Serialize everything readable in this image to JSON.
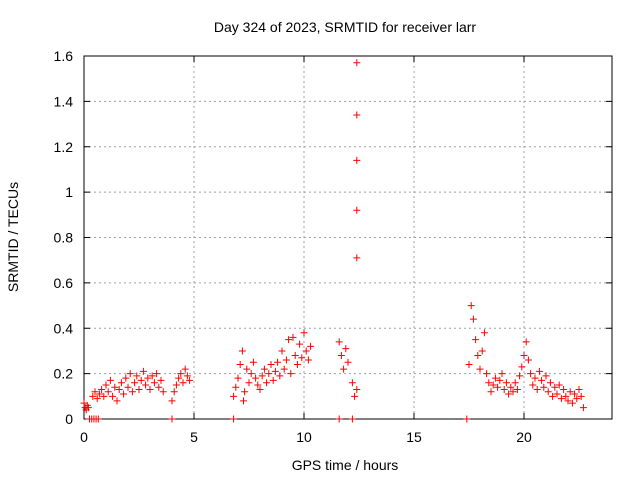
{
  "chart_data": {
    "type": "scatter",
    "title": "Day 324 of 2023, SRMTID for receiver larr",
    "xlabel": "GPS time / hours",
    "ylabel": "SRMTID / TECUs",
    "xlim": [
      0,
      24
    ],
    "ylim": [
      0,
      1.6
    ],
    "xticks": [
      0,
      5,
      10,
      15,
      20
    ],
    "yticks": [
      0,
      0.2,
      0.4,
      0.6,
      0.8,
      1,
      1.2,
      1.4,
      1.6
    ],
    "xtick_labels": [
      "0",
      "5",
      "10",
      "15",
      "20"
    ],
    "ytick_labels": [
      "0",
      "0.2",
      "0.4",
      "0.6",
      "0.8",
      "1",
      "1.2",
      "1.4",
      "1.6"
    ],
    "grid": true,
    "marker": "+",
    "color": "#ff0000",
    "series": [
      {
        "name": "SRMTID",
        "points": [
          [
            0.0,
            0.07
          ],
          [
            0.05,
            0.05
          ],
          [
            0.1,
            0.04
          ],
          [
            0.15,
            0.06
          ],
          [
            0.2,
            0.05
          ],
          [
            0.4,
            0.1
          ],
          [
            0.5,
            0.12
          ],
          [
            0.6,
            0.09
          ],
          [
            0.7,
            0.11
          ],
          [
            0.8,
            0.13
          ],
          [
            0.9,
            0.1
          ],
          [
            1.0,
            0.15
          ],
          [
            1.1,
            0.12
          ],
          [
            1.2,
            0.17
          ],
          [
            1.3,
            0.1
          ],
          [
            1.4,
            0.14
          ],
          [
            1.5,
            0.08
          ],
          [
            1.6,
            0.13
          ],
          [
            1.7,
            0.16
          ],
          [
            1.8,
            0.11
          ],
          [
            1.9,
            0.18
          ],
          [
            2.0,
            0.14
          ],
          [
            2.1,
            0.2
          ],
          [
            2.2,
            0.12
          ],
          [
            2.3,
            0.16
          ],
          [
            2.4,
            0.19
          ],
          [
            2.5,
            0.13
          ],
          [
            2.6,
            0.17
          ],
          [
            2.7,
            0.21
          ],
          [
            2.8,
            0.15
          ],
          [
            2.9,
            0.18
          ],
          [
            3.0,
            0.13
          ],
          [
            3.1,
            0.19
          ],
          [
            3.2,
            0.16
          ],
          [
            3.3,
            0.2
          ],
          [
            3.4,
            0.14
          ],
          [
            3.5,
            0.17
          ],
          [
            3.6,
            0.12
          ],
          [
            4.0,
            0.08
          ],
          [
            4.1,
            0.12
          ],
          [
            4.2,
            0.15
          ],
          [
            4.3,
            0.18
          ],
          [
            4.4,
            0.2
          ],
          [
            4.5,
            0.16
          ],
          [
            4.6,
            0.22
          ],
          [
            4.7,
            0.19
          ],
          [
            4.8,
            0.17
          ],
          [
            6.8,
            0.1
          ],
          [
            6.9,
            0.14
          ],
          [
            7.0,
            0.18
          ],
          [
            7.1,
            0.24
          ],
          [
            7.2,
            0.3
          ],
          [
            7.25,
            0.08
          ],
          [
            7.3,
            0.12
          ],
          [
            7.4,
            0.22
          ],
          [
            7.5,
            0.16
          ],
          [
            7.6,
            0.2
          ],
          [
            7.7,
            0.25
          ],
          [
            7.8,
            0.18
          ],
          [
            7.9,
            0.15
          ],
          [
            8.0,
            0.13
          ],
          [
            8.1,
            0.19
          ],
          [
            8.2,
            0.22
          ],
          [
            8.3,
            0.16
          ],
          [
            8.4,
            0.2
          ],
          [
            8.5,
            0.24
          ],
          [
            8.6,
            0.17
          ],
          [
            8.7,
            0.21
          ],
          [
            8.8,
            0.25
          ],
          [
            8.9,
            0.19
          ],
          [
            9.0,
            0.3
          ],
          [
            9.1,
            0.22
          ],
          [
            9.2,
            0.26
          ],
          [
            9.3,
            0.35
          ],
          [
            9.4,
            0.2
          ],
          [
            9.5,
            0.36
          ],
          [
            9.6,
            0.28
          ],
          [
            9.7,
            0.24
          ],
          [
            9.8,
            0.33
          ],
          [
            9.9,
            0.27
          ],
          [
            10.0,
            0.38
          ],
          [
            10.1,
            0.3
          ],
          [
            10.2,
            0.26
          ],
          [
            10.3,
            0.32
          ],
          [
            11.6,
            0.34
          ],
          [
            11.7,
            0.28
          ],
          [
            11.8,
            0.22
          ],
          [
            11.9,
            0.31
          ],
          [
            12.0,
            0.25
          ],
          [
            12.2,
            0.16
          ],
          [
            12.3,
            0.1
          ],
          [
            12.4,
            0.13
          ],
          [
            12.4,
            0.71
          ],
          [
            12.4,
            0.92
          ],
          [
            12.4,
            1.14
          ],
          [
            12.4,
            1.34
          ],
          [
            12.4,
            1.57
          ],
          [
            17.5,
            0.24
          ],
          [
            17.6,
            0.5
          ],
          [
            17.7,
            0.44
          ],
          [
            17.8,
            0.35
          ],
          [
            17.9,
            0.28
          ],
          [
            18.0,
            0.22
          ],
          [
            18.1,
            0.3
          ],
          [
            18.2,
            0.38
          ],
          [
            18.3,
            0.2
          ],
          [
            18.4,
            0.16
          ],
          [
            18.5,
            0.12
          ],
          [
            18.6,
            0.15
          ],
          [
            18.7,
            0.18
          ],
          [
            18.8,
            0.14
          ],
          [
            18.9,
            0.17
          ],
          [
            19.0,
            0.2
          ],
          [
            19.1,
            0.13
          ],
          [
            19.2,
            0.16
          ],
          [
            19.3,
            0.11
          ],
          [
            19.4,
            0.14
          ],
          [
            19.5,
            0.12
          ],
          [
            19.6,
            0.16
          ],
          [
            19.7,
            0.13
          ],
          [
            19.8,
            0.19
          ],
          [
            19.9,
            0.23
          ],
          [
            20.0,
            0.28
          ],
          [
            20.1,
            0.34
          ],
          [
            20.2,
            0.26
          ],
          [
            20.3,
            0.2
          ],
          [
            20.4,
            0.15
          ],
          [
            20.5,
            0.18
          ],
          [
            20.6,
            0.13
          ],
          [
            20.7,
            0.21
          ],
          [
            20.8,
            0.17
          ],
          [
            20.9,
            0.14
          ],
          [
            21.0,
            0.19
          ],
          [
            21.1,
            0.12
          ],
          [
            21.2,
            0.16
          ],
          [
            21.3,
            0.1
          ],
          [
            21.4,
            0.14
          ],
          [
            21.5,
            0.11
          ],
          [
            21.6,
            0.15
          ],
          [
            21.7,
            0.09
          ],
          [
            21.8,
            0.13
          ],
          [
            21.9,
            0.1
          ],
          [
            22.0,
            0.08
          ],
          [
            22.1,
            0.12
          ],
          [
            22.2,
            0.07
          ],
          [
            22.3,
            0.11
          ],
          [
            22.4,
            0.09
          ],
          [
            22.5,
            0.13
          ],
          [
            22.6,
            0.1
          ],
          [
            22.7,
            0.05
          ],
          [
            0.25,
            0.0
          ],
          [
            0.35,
            0.0
          ],
          [
            0.45,
            0.0
          ],
          [
            0.55,
            0.0
          ],
          [
            0.65,
            0.0
          ],
          [
            4.0,
            0.0
          ],
          [
            6.8,
            0.0
          ],
          [
            11.6,
            0.0
          ],
          [
            12.2,
            0.0
          ],
          [
            17.4,
            0.0
          ]
        ]
      }
    ]
  }
}
